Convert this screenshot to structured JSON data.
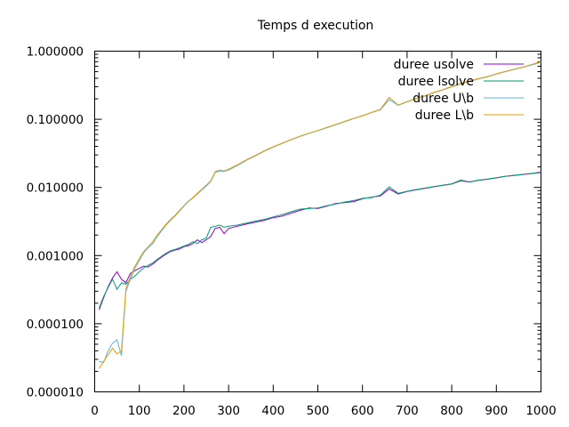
{
  "chart_data": {
    "type": "line",
    "title": "Temps d execution",
    "xlabel": "",
    "ylabel": "",
    "xlim": [
      0,
      1000
    ],
    "ylim": [
      1e-05,
      1
    ],
    "yscale": "log",
    "grid": false,
    "legend_position": "top-right",
    "x_ticks": [
      "0",
      "100",
      "200",
      "300",
      "400",
      "500",
      "600",
      "700",
      "800",
      "900",
      "1000"
    ],
    "y_ticks": [
      "0.000010",
      "0.000100",
      "0.001000",
      "0.010000",
      "0.100000",
      "1.000000"
    ],
    "series": [
      {
        "name": "duree usolve",
        "color": "#9400d3",
        "x": [
          10,
          20,
          30,
          40,
          50,
          60,
          70,
          80,
          90,
          100,
          110,
          120,
          130,
          140,
          150,
          160,
          170,
          180,
          190,
          200,
          210,
          220,
          230,
          240,
          250,
          260,
          270,
          280,
          290,
          300,
          320,
          340,
          360,
          380,
          400,
          420,
          440,
          460,
          480,
          500,
          520,
          540,
          560,
          580,
          600,
          620,
          640,
          660,
          680,
          700,
          720,
          740,
          760,
          780,
          800,
          820,
          840,
          860,
          880,
          900,
          920,
          940,
          960,
          980,
          1000
        ],
        "values": [
          0.00016,
          0.00024,
          0.00035,
          0.00047,
          0.00058,
          0.00045,
          0.0004,
          0.00055,
          0.0006,
          0.00065,
          0.0007,
          0.00068,
          0.00075,
          0.00085,
          0.00095,
          0.00105,
          0.00115,
          0.0012,
          0.00125,
          0.00135,
          0.0014,
          0.0015,
          0.0017,
          0.00155,
          0.0017,
          0.0019,
          0.0025,
          0.0026,
          0.0021,
          0.0025,
          0.0027,
          0.0029,
          0.0031,
          0.0033,
          0.0036,
          0.0038,
          0.0042,
          0.0046,
          0.005,
          0.0049,
          0.0053,
          0.0058,
          0.006,
          0.0062,
          0.0068,
          0.0072,
          0.0075,
          0.0095,
          0.008,
          0.0087,
          0.0092,
          0.0097,
          0.0102,
          0.0107,
          0.0112,
          0.0125,
          0.012,
          0.0127,
          0.0132,
          0.0138,
          0.0145,
          0.015,
          0.0155,
          0.016,
          0.0165
        ]
      },
      {
        "name": "duree  lsolve",
        "color": "#009e73",
        "x": [
          10,
          20,
          30,
          40,
          50,
          60,
          70,
          80,
          90,
          100,
          110,
          120,
          130,
          140,
          150,
          160,
          170,
          180,
          190,
          200,
          210,
          220,
          230,
          240,
          250,
          260,
          270,
          280,
          290,
          300,
          320,
          340,
          360,
          380,
          400,
          420,
          440,
          460,
          480,
          500,
          520,
          540,
          560,
          580,
          600,
          620,
          640,
          660,
          680,
          700,
          720,
          740,
          760,
          780,
          800,
          820,
          840,
          860,
          880,
          900,
          920,
          940,
          960,
          980,
          1000
        ],
        "values": [
          0.00017,
          0.00025,
          0.00034,
          0.00045,
          0.00032,
          0.0004,
          0.00038,
          0.00045,
          0.0005,
          0.00058,
          0.00066,
          0.00072,
          0.00078,
          0.00088,
          0.00098,
          0.00108,
          0.00118,
          0.00123,
          0.0013,
          0.00138,
          0.00145,
          0.0016,
          0.0015,
          0.0017,
          0.0018,
          0.0026,
          0.0027,
          0.0028,
          0.0026,
          0.0027,
          0.0028,
          0.003,
          0.0032,
          0.0034,
          0.0037,
          0.004,
          0.0044,
          0.0048,
          0.0049,
          0.005,
          0.0054,
          0.0057,
          0.0061,
          0.0064,
          0.0069,
          0.0071,
          0.0077,
          0.0102,
          0.0082,
          0.0088,
          0.0093,
          0.0098,
          0.0103,
          0.0108,
          0.0113,
          0.0128,
          0.0121,
          0.0128,
          0.0133,
          0.0139,
          0.0146,
          0.0151,
          0.0156,
          0.0161,
          0.0168
        ]
      },
      {
        "name": "duree U\\b",
        "color": "#56b4e9",
        "x": [
          10,
          20,
          30,
          40,
          50,
          60,
          70,
          80,
          90,
          100,
          110,
          120,
          130,
          140,
          150,
          160,
          170,
          180,
          190,
          200,
          210,
          220,
          230,
          240,
          250,
          260,
          270,
          280,
          290,
          300,
          320,
          340,
          360,
          380,
          400,
          420,
          440,
          460,
          480,
          500,
          520,
          540,
          560,
          580,
          600,
          620,
          640,
          660,
          680,
          700,
          720,
          740,
          760,
          780,
          800,
          820,
          840,
          860,
          880,
          900,
          920,
          940,
          960,
          980,
          1000
        ],
        "values": [
          2.8e-05,
          2.7e-05,
          4e-05,
          5.2e-05,
          5.8e-05,
          3.4e-05,
          0.0003,
          0.00045,
          0.00065,
          0.00085,
          0.0011,
          0.0013,
          0.0015,
          0.0019,
          0.0023,
          0.0028,
          0.0033,
          0.0038,
          0.0045,
          0.0053,
          0.0062,
          0.007,
          0.008,
          0.0092,
          0.0105,
          0.0122,
          0.0165,
          0.0175,
          0.0172,
          0.018,
          0.021,
          0.025,
          0.029,
          0.034,
          0.039,
          0.044,
          0.05,
          0.056,
          0.062,
          0.068,
          0.075,
          0.083,
          0.092,
          0.102,
          0.112,
          0.125,
          0.138,
          0.195,
          0.16,
          0.18,
          0.2,
          0.22,
          0.245,
          0.27,
          0.3,
          0.33,
          0.36,
          0.39,
          0.42,
          0.46,
          0.5,
          0.54,
          0.58,
          0.63,
          0.68
        ]
      },
      {
        "name": "duree L\\b",
        "color": "#e69f00",
        "x": [
          10,
          20,
          30,
          40,
          50,
          60,
          70,
          80,
          90,
          100,
          110,
          120,
          130,
          140,
          150,
          160,
          170,
          180,
          190,
          200,
          210,
          220,
          230,
          240,
          250,
          260,
          270,
          280,
          290,
          300,
          320,
          340,
          360,
          380,
          400,
          420,
          440,
          460,
          480,
          500,
          520,
          540,
          560,
          580,
          600,
          620,
          640,
          660,
          680,
          700,
          720,
          740,
          760,
          780,
          800,
          820,
          840,
          860,
          880,
          900,
          920,
          940,
          960,
          980,
          1000
        ],
        "values": [
          2.2e-05,
          2.8e-05,
          3.5e-05,
          4.4e-05,
          3.6e-05,
          4e-05,
          0.00032,
          0.0005,
          0.0007,
          0.0009,
          0.00115,
          0.00135,
          0.0016,
          0.002,
          0.0024,
          0.0029,
          0.0034,
          0.0039,
          0.0046,
          0.0054,
          0.0063,
          0.0071,
          0.0082,
          0.0094,
          0.0108,
          0.0125,
          0.017,
          0.018,
          0.0175,
          0.0185,
          0.0215,
          0.0255,
          0.0295,
          0.0345,
          0.0395,
          0.0445,
          0.0505,
          0.0565,
          0.0625,
          0.0685,
          0.076,
          0.084,
          0.093,
          0.103,
          0.113,
          0.126,
          0.14,
          0.21,
          0.162,
          0.182,
          0.202,
          0.222,
          0.248,
          0.272,
          0.305,
          0.335,
          0.365,
          0.395,
          0.425,
          0.465,
          0.505,
          0.545,
          0.585,
          0.64,
          0.7
        ]
      }
    ]
  }
}
